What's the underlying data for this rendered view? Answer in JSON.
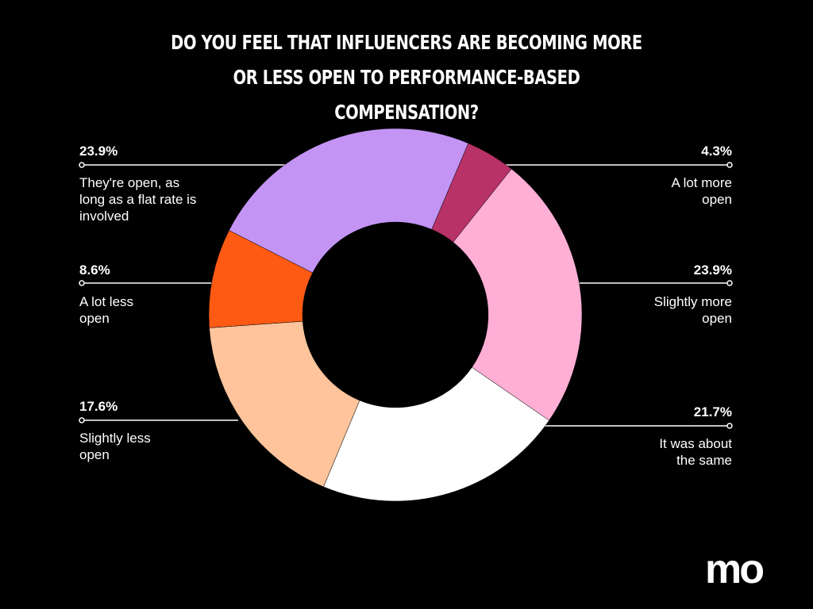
{
  "chart_data": {
    "type": "donut",
    "title": "DO YOU FEEL THAT INFLUENCERS ARE BECOMING MORE OR LESS OPEN TO PERFORMANCE-BASED COMPENSATION?",
    "categories": [
      "A lot more open",
      "Slightly more open",
      "It was about the same",
      "Slightly less open",
      "A lot less open",
      "They're open, as long as a flat rate is involved"
    ],
    "values": [
      4.3,
      23.9,
      21.7,
      17.6,
      8.6,
      23.9
    ],
    "value_labels": [
      "4.3%",
      "23.9%",
      "21.7%",
      "17.6%",
      "8.6%",
      "23.9%"
    ],
    "colors": [
      "#b83268",
      "#ffaed6",
      "#ffffff",
      "#ffc49b",
      "#ff5a14",
      "#c494f5"
    ],
    "logo": "mo"
  }
}
